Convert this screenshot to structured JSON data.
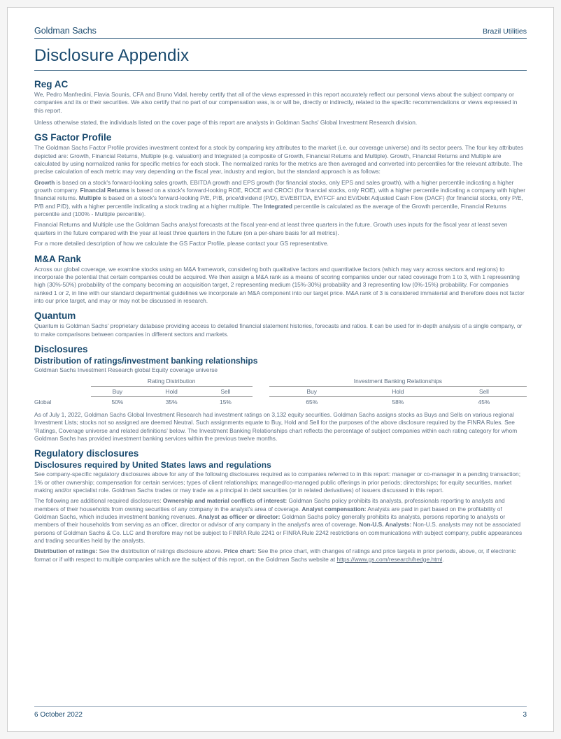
{
  "header": {
    "company": "Goldman Sachs",
    "sector": "Brazil Utilities"
  },
  "main_title": "Disclosure Appendix",
  "colors": {
    "brand": "#1a4a6e",
    "body_text": "#5d6f83",
    "border": "#b8c4d0",
    "page_bg": "#ffffff"
  },
  "typography": {
    "main_title_pt": 24,
    "section_heading_pt": 13.5,
    "subsection_heading_pt": 12,
    "body_pt": 8.4,
    "header_pt": 12.5,
    "footer_pt": 10
  },
  "sections": {
    "reg_ac": {
      "title": "Reg AC",
      "p1": "We, Pedro Manfredini, Flavia Sounis, CFA and Bruno Vidal, hereby certify that all of the views expressed in this report accurately reflect our personal views about the subject company or companies and its or their securities. We also certify that no part of our compensation was, is or will be, directly or indirectly, related to the specific recommendations or views expressed in this report.",
      "p2": "Unless otherwise stated, the individuals listed on the cover page of this report are analysts in Goldman Sachs' Global Investment Research division."
    },
    "gs_factor": {
      "title": "GS Factor Profile",
      "p1": "The Goldman Sachs Factor Profile provides investment context for a stock by comparing key attributes to the market (i.e. our coverage universe) and its sector peers. The four key attributes depicted are: Growth, Financial Returns, Multiple (e.g. valuation) and Integrated (a composite of Growth, Financial Returns and Multiple). Growth, Financial Returns and Multiple are calculated by using normalized ranks for specific metrics for each stock. The normalized ranks for the metrics are then averaged and converted into percentiles for the relevant attribute. The precise calculation of each metric may vary depending on the fiscal year, industry and region, but the standard approach is as follows:",
      "p2": "Growth is based on a stock's forward-looking sales growth, EBITDA growth and EPS growth (for financial stocks, only EPS and sales growth), with a higher percentile indicating a higher growth company. Financial Returns is based on a stock's forward-looking ROE, ROCE and CROCI (for financial stocks, only ROE), with a higher percentile indicating a company with higher financial returns. Multiple is based on a stock's forward-looking P/E, P/B, price/dividend (P/D), EV/EBITDA, EV/FCF and EV/Debt Adjusted Cash Flow (DACF) (for financial stocks, only P/E, P/B and P/D), with a higher percentile indicating a stock trading at a higher multiple. The Integrated percentile is calculated as the average of the Growth percentile, Financial Returns percentile and (100% - Multiple percentile).",
      "p3": "Financial Returns and Multiple use the Goldman Sachs analyst forecasts at the fiscal year-end at least three quarters in the future. Growth uses inputs for the fiscal year at least seven quarters in the future compared with the year at least three quarters in the future (on a per-share basis for all metrics).",
      "p4": "For a more detailed description of how we calculate the GS Factor Profile, please contact your GS representative."
    },
    "ma_rank": {
      "title": "M&A Rank",
      "p1": "Across our global coverage, we examine stocks using an M&A framework, considering both qualitative factors and quantitative factors (which may vary across sectors and regions) to incorporate the potential that certain companies could be acquired. We then assign a M&A rank as a means of scoring companies under our rated coverage from 1 to 3, with 1 representing high (30%-50%) probability of the company becoming an acquisition target, 2 representing medium (15%-30%) probability and 3 representing low (0%-15%) probability. For companies ranked 1 or 2, in line with our standard departmental guidelines we incorporate an M&A component into our target price. M&A rank of 3 is considered immaterial and therefore does not factor into our price target, and may or may not be discussed in research."
    },
    "quantum": {
      "title": "Quantum",
      "p1": "Quantum is Goldman Sachs' proprietary database providing access to detailed financial statement histories, forecasts and ratios. It can be used for in-depth analysis of a single company, or to make comparisons between companies in different sectors and markets."
    },
    "disclosures": {
      "title": "Disclosures",
      "dist_title": "Distribution of ratings/investment banking relationships",
      "caption": "Goldman Sachs Investment Research global Equity coverage universe",
      "table": {
        "group1": "Rating Distribution",
        "group2": "Investment Banking Relationships",
        "subheads": [
          "Buy",
          "Hold",
          "Sell"
        ],
        "rowlabel": "Global",
        "rating_values": [
          "50%",
          "35%",
          "15%"
        ],
        "ib_values": [
          "65%",
          "58%",
          "45%"
        ]
      },
      "p_after": "As of July 1, 2022, Goldman Sachs Global Investment Research had investment ratings on 3,132 equity securities. Goldman Sachs assigns stocks as Buys and Sells on various regional Investment Lists; stocks not so assigned are deemed Neutral. Such assignments equate to Buy, Hold and Sell for the purposes of the above disclosure required by the FINRA Rules. See 'Ratings, Coverage universe and related definitions' below. The Investment Banking Relationships chart reflects the percentage of subject companies within each rating category for whom Goldman Sachs has provided investment banking services within the previous twelve months."
    },
    "regulatory": {
      "title": "Regulatory disclosures",
      "us_title": "Disclosures required by United States laws and regulations",
      "p1": "See company-specific regulatory disclosures above for any of the following disclosures required as to companies referred to in this report: manager or co-manager in a pending transaction; 1% or other ownership; compensation for certain services; types of client relationships; managed/co-managed public offerings in prior periods; directorships; for equity securities, market making and/or specialist role. Goldman Sachs trades or may trade as a principal in debt securities (or in related derivatives) of issuers discussed in this report.",
      "p2": "The following are additional required disclosures: Ownership and material conflicts of interest: Goldman Sachs policy prohibits its analysts, professionals reporting to analysts and members of their households from owning securities of any company in the analyst's area of coverage. Analyst compensation: Analysts are paid in part based on the profitability of Goldman Sachs, which includes investment banking revenues. Analyst as officer or director: Goldman Sachs policy generally prohibits its analysts, persons reporting to analysts or members of their households from serving as an officer, director or advisor of any company in the analyst's area of coverage. Non-U.S. Analysts: Non-U.S. analysts may not be associated persons of Goldman Sachs & Co. LLC and therefore may not be subject to FINRA Rule 2241 or FINRA Rule 2242 restrictions on communications with subject company, public appearances and trading securities held by the analysts.",
      "p3": "Distribution of ratings: See the distribution of ratings disclosure above.  Price chart: See the price chart, with changes of ratings and price targets in prior periods, above, or, if electronic format or if with respect to multiple companies which are the subject of this report, on the Goldman Sachs website at https://www.gs.com/research/hedge.html."
    }
  },
  "footer": {
    "date": "6 October 2022",
    "page": "3"
  }
}
